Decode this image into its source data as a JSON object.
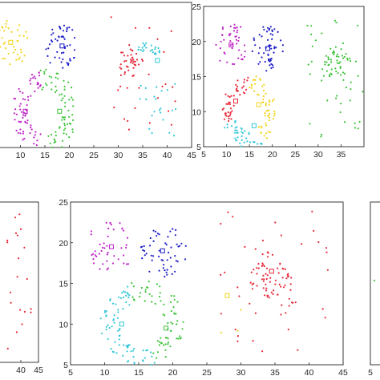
{
  "colors": {
    "red": "#e8293a",
    "blue": "#1f1fc8",
    "yellow": "#f2d41c",
    "magenta": "#c026c8",
    "green": "#3ec43a",
    "cyan": "#33c7d6"
  },
  "chart_data": [
    {
      "id": "panel-top-left",
      "type": "scatter",
      "xlim": [
        5,
        45
      ],
      "ylim": [
        5,
        25
      ],
      "xticks": [
        "10",
        "15",
        "20",
        "25",
        "30",
        "35",
        "40",
        "45"
      ],
      "yticks": [],
      "clusters": [
        {
          "color": "yellow",
          "shape": "blob",
          "cx": 8.5,
          "cy": 19.5,
          "r": 3.2,
          "n": 38,
          "seed": 11
        },
        {
          "color": "blue",
          "shape": "blob",
          "cx": 18.5,
          "cy": 19,
          "r": 3.2,
          "n": 50,
          "seed": 12
        },
        {
          "color": "magenta",
          "shape": "arc",
          "cx": 15,
          "cy": 10,
          "r": 5.5,
          "from": 100,
          "to": 260,
          "n": 70,
          "seed": 13
        },
        {
          "color": "green",
          "shape": "arc",
          "cx": 15,
          "cy": 10,
          "r": 5.5,
          "from": -80,
          "to": 100,
          "n": 70,
          "seed": 14
        },
        {
          "color": "red",
          "shape": "blob",
          "cx": 32.5,
          "cy": 17,
          "r": 2.2,
          "n": 35,
          "seed": 15
        },
        {
          "color": "cyan",
          "shape": "arc",
          "cx": 36,
          "cy": 17,
          "r": 2.5,
          "from": 20,
          "to": 140,
          "n": 25,
          "seed": 16
        },
        {
          "color": "red",
          "shape": "grid",
          "x0": 28,
          "x1": 42,
          "y0": 7,
          "y1": 23,
          "n": 30,
          "seed": 17
        },
        {
          "color": "cyan",
          "shape": "grid",
          "x0": 34,
          "x1": 42,
          "y0": 6,
          "y1": 14,
          "n": 22,
          "seed": 18
        }
      ],
      "centers": [
        {
          "color": "yellow",
          "x": 8,
          "y": 19.5
        },
        {
          "color": "blue",
          "x": 18.5,
          "y": 19
        },
        {
          "color": "magenta",
          "x": 11,
          "y": 10
        },
        {
          "color": "green",
          "x": 18,
          "y": 10
        },
        {
          "color": "cyan",
          "x": 38,
          "y": 17
        }
      ]
    },
    {
      "id": "panel-top-right",
      "type": "scatter",
      "xlim": [
        5,
        40
      ],
      "ylim": [
        5,
        25
      ],
      "xticks": [
        "5",
        "10",
        "15",
        "20",
        "25",
        "30",
        "35"
      ],
      "yticks": [
        "5",
        "10",
        "15",
        "20",
        "25"
      ],
      "clusters": [
        {
          "color": "magenta",
          "shape": "blob",
          "cx": 11,
          "cy": 19.5,
          "r": 3.2,
          "n": 45,
          "seed": 21
        },
        {
          "color": "blue",
          "shape": "blob",
          "cx": 19,
          "cy": 19,
          "r": 3.2,
          "n": 55,
          "seed": 22
        },
        {
          "color": "red",
          "shape": "arc",
          "cx": 15,
          "cy": 10,
          "r": 5.0,
          "from": 90,
          "to": 200,
          "n": 45,
          "seed": 23
        },
        {
          "color": "yellow",
          "shape": "arc",
          "cx": 15,
          "cy": 10,
          "r": 5.0,
          "from": -60,
          "to": 90,
          "n": 55,
          "seed": 24
        },
        {
          "color": "cyan",
          "shape": "arc",
          "cx": 15,
          "cy": 10,
          "r": 5.0,
          "from": 200,
          "to": 300,
          "n": 40,
          "seed": 25
        },
        {
          "color": "green",
          "shape": "blob",
          "cx": 34,
          "cy": 17,
          "r": 2.4,
          "n": 40,
          "seed": 26
        },
        {
          "color": "green",
          "shape": "grid",
          "x0": 27,
          "x1": 40,
          "y0": 6,
          "y1": 23,
          "n": 45,
          "seed": 27
        }
      ],
      "centers": [
        {
          "color": "magenta",
          "x": 11,
          "y": 19.5
        },
        {
          "color": "blue",
          "x": 19,
          "y": 19
        },
        {
          "color": "red",
          "x": 12,
          "y": 11.5
        },
        {
          "color": "yellow",
          "x": 17,
          "y": 11
        },
        {
          "color": "cyan",
          "x": 16,
          "y": 8
        }
      ]
    },
    {
      "id": "panel-bottom-left",
      "type": "scatter",
      "xlim": [
        25,
        45
      ],
      "ylim": [
        5,
        25
      ],
      "xticks": [
        "40",
        "45"
      ],
      "yticks": [],
      "clusters": [
        {
          "color": "red",
          "shape": "grid",
          "x0": 36,
          "x1": 43,
          "y0": 6,
          "y1": 24,
          "n": 20,
          "seed": 31
        }
      ],
      "centers": []
    },
    {
      "id": "panel-bottom-center",
      "type": "scatter",
      "xlim": [
        5,
        45
      ],
      "ylim": [
        5,
        25
      ],
      "xticks": [
        "5",
        "10",
        "15",
        "20",
        "25",
        "30",
        "35",
        "40",
        "45"
      ],
      "yticks": [
        "5",
        "10",
        "15",
        "20",
        "25"
      ],
      "clusters": [
        {
          "color": "magenta",
          "shape": "blob",
          "cx": 11,
          "cy": 19.5,
          "r": 3.3,
          "n": 45,
          "seed": 41
        },
        {
          "color": "blue",
          "shape": "blob",
          "cx": 18.5,
          "cy": 19,
          "r": 3.2,
          "n": 55,
          "seed": 42
        },
        {
          "color": "cyan",
          "shape": "arc",
          "cx": 15.5,
          "cy": 10,
          "r": 5.2,
          "from": 110,
          "to": 290,
          "n": 80,
          "seed": 43
        },
        {
          "color": "green",
          "shape": "arc",
          "cx": 15.5,
          "cy": 10,
          "r": 5.2,
          "from": -70,
          "to": 110,
          "n": 70,
          "seed": 44
        },
        {
          "color": "red",
          "shape": "blob",
          "cx": 34,
          "cy": 16,
          "r": 2.8,
          "n": 60,
          "seed": 45
        },
        {
          "color": "red",
          "shape": "grid",
          "x0": 27,
          "x1": 43,
          "y0": 6,
          "y1": 24,
          "n": 45,
          "seed": 46
        },
        {
          "color": "yellow",
          "shape": "grid",
          "x0": 27,
          "x1": 30,
          "y0": 8,
          "y1": 12,
          "n": 3,
          "seed": 47
        }
      ],
      "centers": [
        {
          "color": "magenta",
          "x": 11,
          "y": 19.5
        },
        {
          "color": "blue",
          "x": 18.5,
          "y": 19
        },
        {
          "color": "cyan",
          "x": 12.5,
          "y": 10
        },
        {
          "color": "green",
          "x": 19,
          "y": 9.5
        },
        {
          "color": "red",
          "x": 34.5,
          "y": 16.5
        },
        {
          "color": "yellow",
          "x": 28,
          "y": 13.5
        }
      ]
    },
    {
      "id": "panel-bottom-right",
      "type": "scatter",
      "xlim": [
        5,
        25
      ],
      "ylim": [
        5,
        25
      ],
      "xticks": [
        "5"
      ],
      "yticks": [],
      "clusters": [
        {
          "color": "green",
          "shape": "grid",
          "x0": 6,
          "x1": 8,
          "y0": 15,
          "y1": 18,
          "n": 1,
          "seed": 51
        }
      ],
      "centers": []
    }
  ]
}
